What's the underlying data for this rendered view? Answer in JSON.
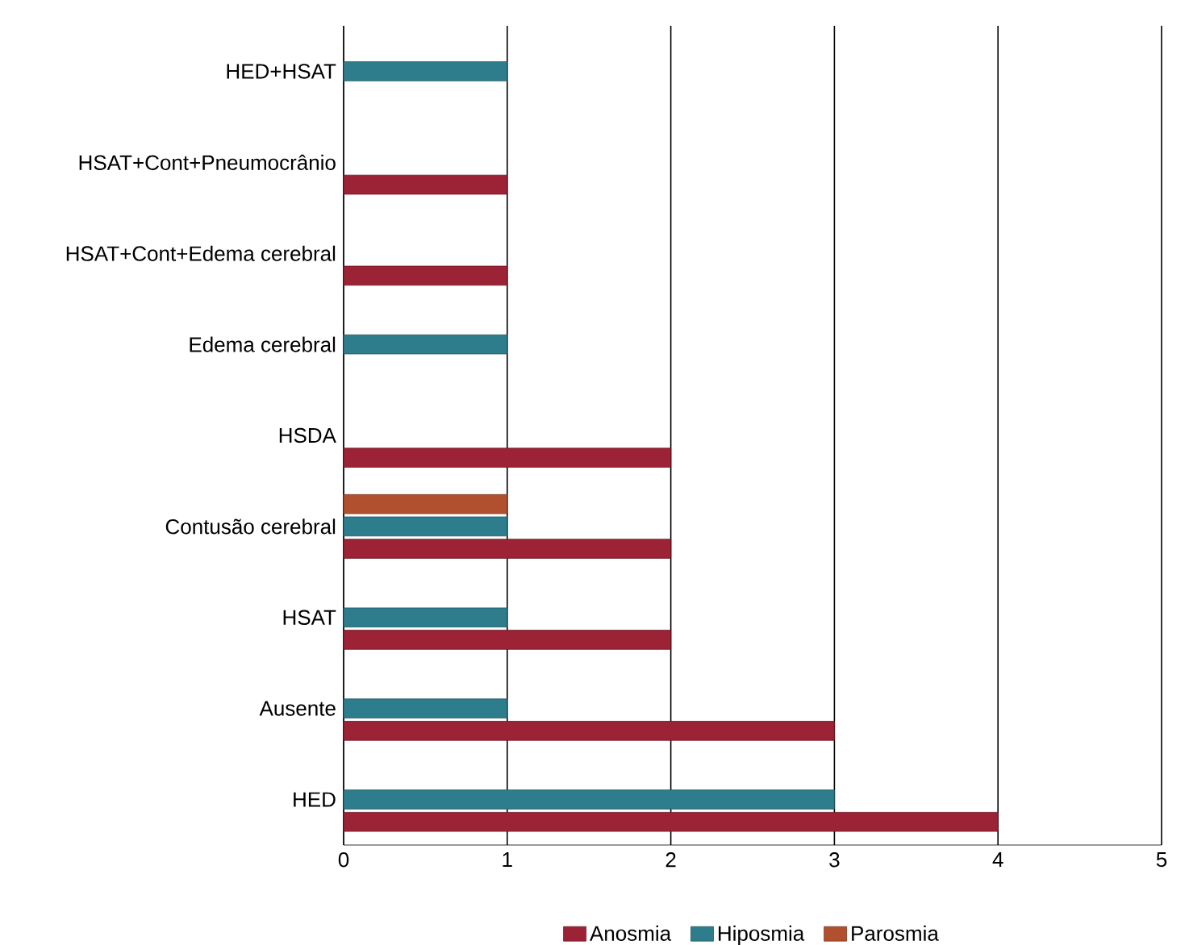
{
  "chart_data": {
    "type": "bar",
    "orientation": "horizontal",
    "categories": [
      "HED+HSAT",
      "HSAT+Cont+Pneumocrânio",
      "HSAT+Cont+Edema cerebral",
      "Edema cerebral",
      "HSDA",
      "Contusão cerebral",
      "HSAT",
      "Ausente",
      "HED"
    ],
    "series": [
      {
        "name": "Anosmia",
        "color": "#9b2335",
        "values": [
          null,
          1,
          1,
          null,
          2,
          2,
          2,
          3,
          4
        ]
      },
      {
        "name": "Hiposmia",
        "color": "#2e7d8c",
        "values": [
          1,
          null,
          null,
          1,
          null,
          1,
          1,
          1,
          3
        ]
      },
      {
        "name": "Parosmia",
        "color": "#b0502e",
        "values": [
          null,
          null,
          null,
          null,
          null,
          1,
          null,
          null,
          null
        ]
      }
    ],
    "xlim": [
      0,
      5
    ],
    "xticks": [
      0,
      1,
      2,
      3,
      4,
      5
    ],
    "grid": "x",
    "legend": "bottom"
  }
}
